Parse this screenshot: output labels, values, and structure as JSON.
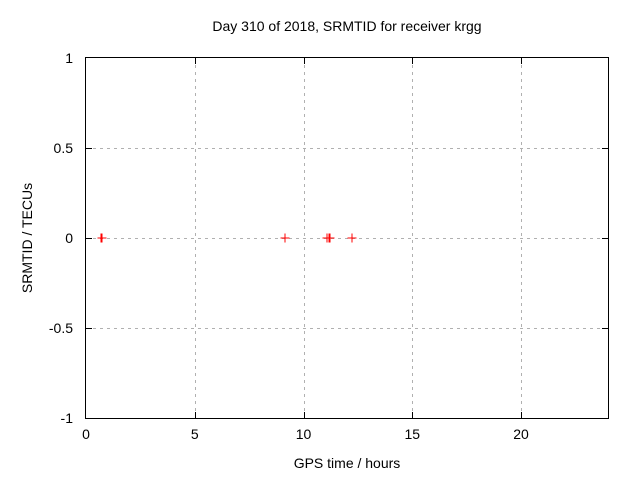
{
  "chart_data": {
    "type": "scatter",
    "title": "Day 310 of 2018, SRMTID for receiver krgg",
    "xlabel": "GPS time / hours",
    "ylabel": "SRMTID / TECUs",
    "xlim": [
      0,
      24
    ],
    "ylim": [
      -1,
      1
    ],
    "xticks": [
      {
        "value": 0,
        "label": "0"
      },
      {
        "value": 5,
        "label": "5"
      },
      {
        "value": 10,
        "label": "10"
      },
      {
        "value": 15,
        "label": "15"
      },
      {
        "value": 20,
        "label": "20"
      }
    ],
    "yticks": [
      {
        "value": 1,
        "label": "1"
      },
      {
        "value": 0.5,
        "label": "0.5"
      },
      {
        "value": 0,
        "label": "0"
      },
      {
        "value": -0.5,
        "label": "-0.5"
      },
      {
        "value": -1,
        "label": "-1"
      }
    ],
    "grid": true,
    "legend_position": "none",
    "marker": "plus",
    "colors": {
      "marker": "#ff0000",
      "grid": "#b0b0b0",
      "axis": "#000000",
      "text": "#000000",
      "background": "#ffffff"
    },
    "series": [
      {
        "name": "SRMTID",
        "x": [
          0.73,
          9.15,
          11.08,
          11.2,
          12.23
        ],
        "y": [
          0,
          0,
          0,
          0,
          0
        ]
      }
    ]
  }
}
